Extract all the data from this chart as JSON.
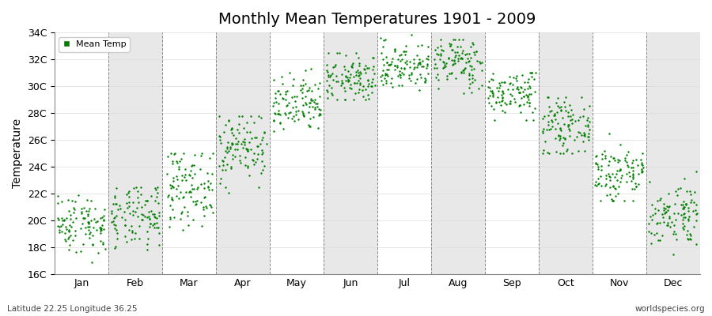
{
  "title": "Monthly Mean Temperatures 1901 - 2009",
  "ylabel": "Temperature",
  "subtitle_left": "Latitude 22.25 Longitude 36.25",
  "subtitle_right": "worldspecies.org",
  "ylim": [
    16,
    34
  ],
  "yticks": [
    16,
    18,
    20,
    22,
    24,
    26,
    28,
    30,
    32,
    34
  ],
  "ytick_labels": [
    "16C",
    "18C",
    "20C",
    "22C",
    "24C",
    "26C",
    "28C",
    "30C",
    "32C",
    "34C"
  ],
  "months": [
    "Jan",
    "Feb",
    "Mar",
    "Apr",
    "May",
    "Jun",
    "Jul",
    "Aug",
    "Sep",
    "Oct",
    "Nov",
    "Dec"
  ],
  "dot_color": "#008000",
  "background_color": "#ffffff",
  "band_color": "#e8e8e8",
  "legend_label": "Mean Temp",
  "n_years": 109,
  "monthly_means": [
    19.8,
    20.2,
    22.5,
    25.5,
    28.5,
    30.5,
    31.5,
    31.8,
    29.5,
    27.0,
    23.5,
    20.5
  ],
  "monthly_stds": [
    1.1,
    1.2,
    1.4,
    1.3,
    1.1,
    0.9,
    0.9,
    1.0,
    0.9,
    1.0,
    1.2,
    1.2
  ],
  "monthly_mins": [
    16.3,
    16.0,
    18.5,
    22.0,
    26.5,
    29.0,
    29.5,
    29.5,
    27.5,
    25.0,
    21.5,
    17.5
  ],
  "monthly_maxs": [
    22.2,
    22.5,
    25.0,
    27.8,
    31.5,
    32.5,
    34.2,
    33.5,
    31.0,
    29.2,
    26.5,
    24.5
  ],
  "seed": 42,
  "grid_color": "#dddddd",
  "dashed_line_color": "#888888",
  "title_fontsize": 14,
  "axis_fontsize": 9,
  "ylabel_fontsize": 10
}
